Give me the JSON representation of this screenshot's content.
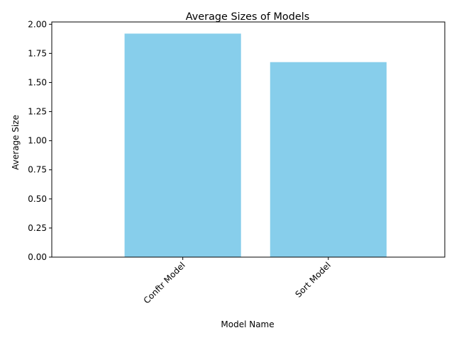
{
  "chart_data": {
    "type": "bar",
    "title": "Average Sizes of Models",
    "xlabel": "Model Name",
    "ylabel": "Average Size",
    "categories": [
      "Conftr Model",
      "Sort Model"
    ],
    "values": [
      1.92,
      1.675
    ],
    "ylim": [
      0,
      2.02
    ],
    "yticks": [
      0.0,
      0.25,
      0.5,
      0.75,
      1.0,
      1.25,
      1.5,
      1.75,
      2.0
    ],
    "ytick_labels": [
      "0.00",
      "0.25",
      "0.50",
      "0.75",
      "1.00",
      "1.25",
      "1.50",
      "1.75",
      "2.00"
    ],
    "bar_color": "#87ceeb",
    "grid": false,
    "legend": false
  }
}
